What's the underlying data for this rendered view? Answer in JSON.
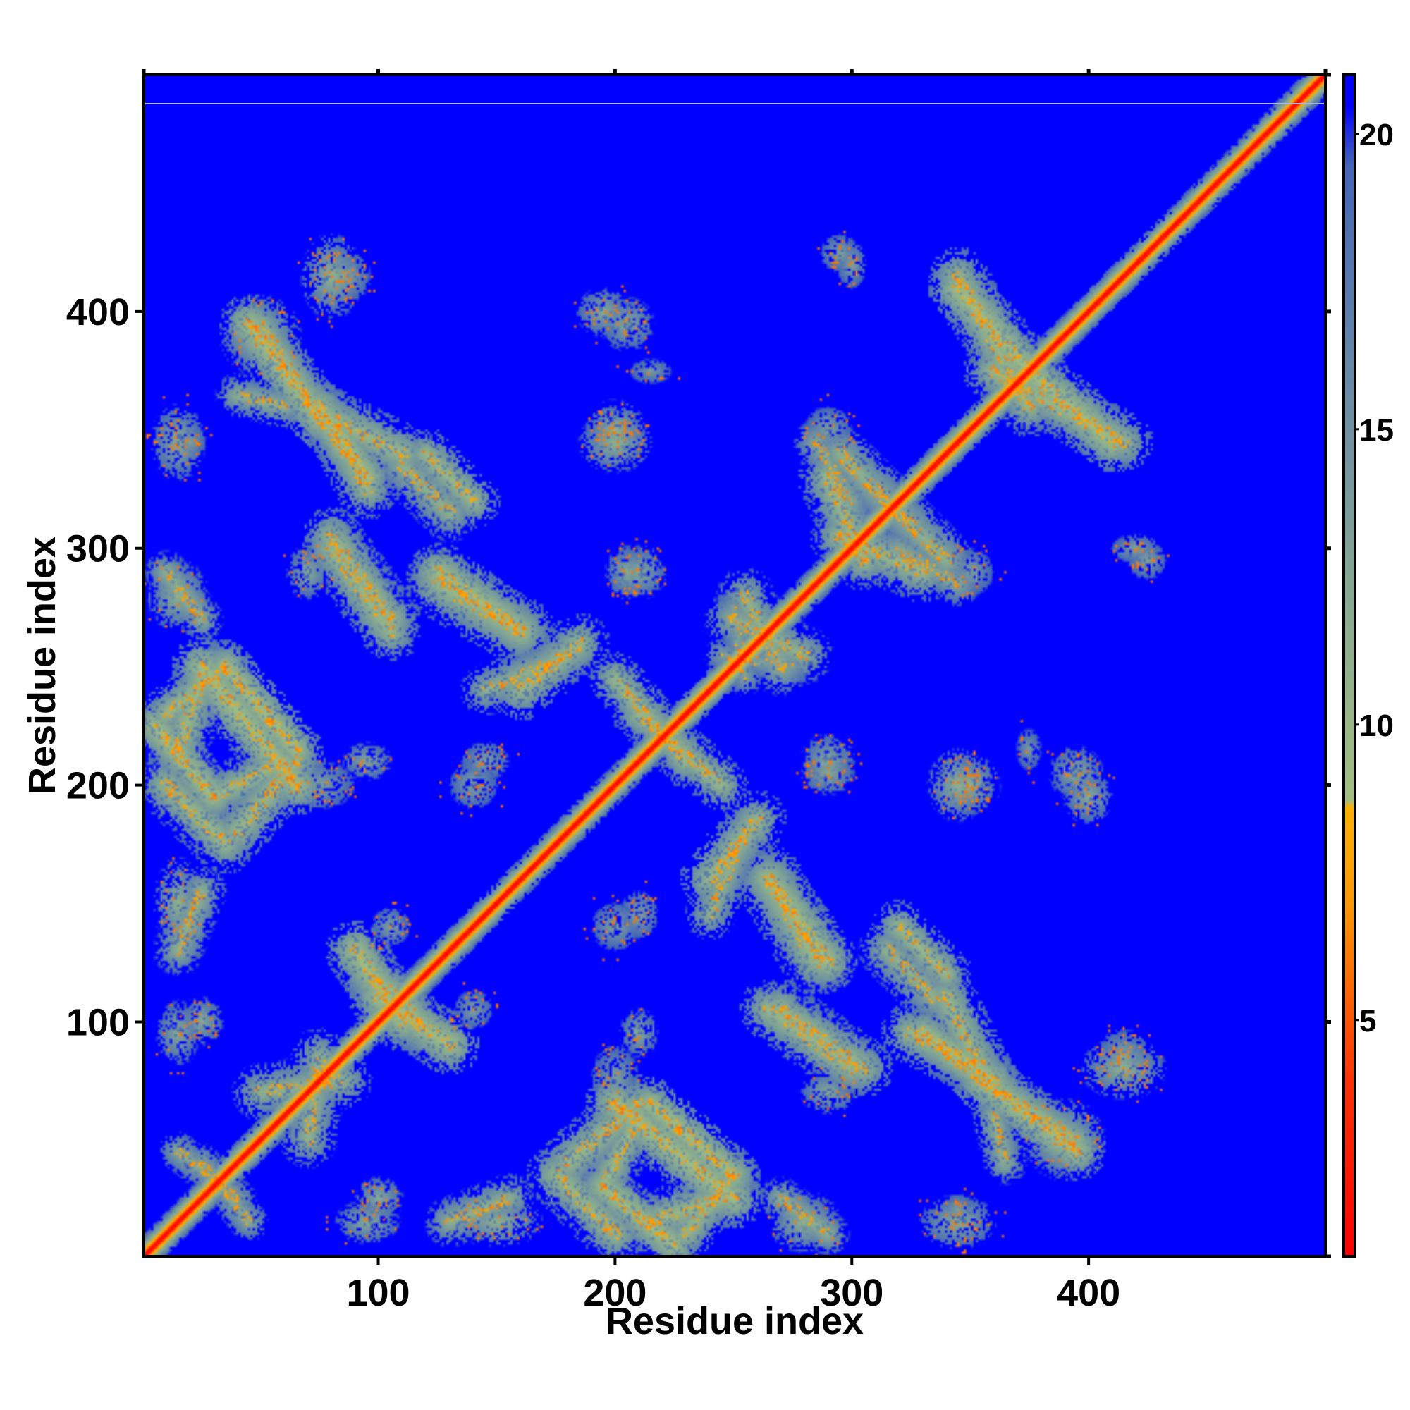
{
  "chart_data": {
    "type": "heatmap",
    "title": "",
    "xlabel": "Residue index",
    "ylabel": "Residue index",
    "xlim": [
      1,
      500
    ],
    "ylim": [
      1,
      500
    ],
    "x_ticks": [
      100,
      200,
      300,
      400
    ],
    "y_ticks": [
      100,
      200,
      300,
      400
    ],
    "colorbar": {
      "range": [
        1,
        21
      ],
      "ticks": [
        5,
        10,
        15,
        20
      ],
      "stops": [
        {
          "value": 1,
          "color": "#ff0000"
        },
        {
          "value": 4,
          "color": "#ff3300"
        },
        {
          "value": 7,
          "color": "#ff9900"
        },
        {
          "value": 8.6,
          "color": "#ffb000"
        },
        {
          "value": 8.7,
          "color": "#a4bf80"
        },
        {
          "value": 12,
          "color": "#88aa90"
        },
        {
          "value": 16,
          "color": "#6688a8"
        },
        {
          "value": 19.5,
          "color": "#4466b8"
        },
        {
          "value": 20.5,
          "color": "#0000ff"
        }
      ]
    },
    "background_value": 21,
    "diagonal": {
      "core_value": 1.5,
      "half_width": 3
    },
    "contact_features": [
      {
        "kind": "blob",
        "x": 85,
        "y": 415,
        "rx": 10,
        "ry": 10,
        "value": 12
      },
      {
        "kind": "blob",
        "x": 50,
        "y": 390,
        "rx": 12,
        "ry": 12,
        "value": 10
      },
      {
        "kind": "blob",
        "x": 205,
        "y": 395,
        "rx": 10,
        "ry": 10,
        "value": 12
      },
      {
        "kind": "blob",
        "x": 295,
        "y": 425,
        "rx": 8,
        "ry": 8,
        "value": 13
      },
      {
        "kind": "blob",
        "x": 20,
        "y": 345,
        "rx": 7,
        "ry": 7,
        "value": 13
      },
      {
        "kind": "blob",
        "x": 200,
        "y": 350,
        "rx": 10,
        "ry": 10,
        "value": 11
      },
      {
        "kind": "blob",
        "x": 205,
        "y": 290,
        "rx": 8,
        "ry": 10,
        "value": 12
      },
      {
        "kind": "blob",
        "x": 420,
        "y": 300,
        "rx": 10,
        "ry": 6,
        "value": 13
      },
      {
        "kind": "blob",
        "x": 25,
        "y": 100,
        "rx": 8,
        "ry": 9,
        "value": 12
      },
      {
        "kind": "blob",
        "x": 95,
        "y": 210,
        "rx": 9,
        "ry": 7,
        "value": 12
      },
      {
        "kind": "blob",
        "x": 145,
        "y": 210,
        "rx": 10,
        "ry": 8,
        "value": 13
      },
      {
        "kind": "blob",
        "x": 290,
        "y": 210,
        "rx": 10,
        "ry": 10,
        "value": 12
      },
      {
        "kind": "blob",
        "x": 345,
        "y": 200,
        "rx": 10,
        "ry": 12,
        "value": 11
      },
      {
        "kind": "blob",
        "x": 400,
        "y": 195,
        "rx": 9,
        "ry": 10,
        "value": 12
      },
      {
        "kind": "blob",
        "x": 375,
        "y": 215,
        "rx": 6,
        "ry": 10,
        "value": 14
      },
      {
        "kind": "blob",
        "x": 350,
        "y": 290,
        "rx": 10,
        "ry": 10,
        "value": 13
      },
      {
        "kind": "blob",
        "x": 415,
        "y": 80,
        "rx": 14,
        "ry": 10,
        "value": 11
      },
      {
        "kind": "blob",
        "x": 95,
        "y": 15,
        "rx": 12,
        "ry": 8,
        "value": 12
      },
      {
        "kind": "blob",
        "x": 345,
        "y": 15,
        "rx": 14,
        "ry": 10,
        "value": 12
      },
      {
        "kind": "blob",
        "x": 280,
        "y": 15,
        "rx": 12,
        "ry": 10,
        "value": 11
      },
      {
        "kind": "blob",
        "x": 200,
        "y": 75,
        "rx": 10,
        "ry": 15,
        "value": 13
      },
      {
        "kind": "blob",
        "x": 290,
        "y": 70,
        "rx": 10,
        "ry": 8,
        "value": 12
      },
      {
        "kind": "blob",
        "x": 200,
        "y": 140,
        "rx": 10,
        "ry": 10,
        "value": 13
      },
      {
        "kind": "blob",
        "x": 140,
        "y": 105,
        "rx": 8,
        "ry": 8,
        "value": 13
      },
      {
        "kind": "blob",
        "x": 15,
        "y": 150,
        "rx": 8,
        "ry": 15,
        "value": 11
      },
      {
        "kind": "band",
        "x1": 50,
        "y1": 395,
        "x2": 85,
        "y2": 340,
        "width": 6,
        "value": 10
      },
      {
        "kind": "band",
        "x1": 75,
        "y1": 360,
        "x2": 95,
        "y2": 330,
        "width": 7,
        "value": 9
      },
      {
        "kind": "band",
        "x1": 120,
        "y1": 340,
        "x2": 140,
        "y2": 320,
        "width": 7,
        "value": 10
      },
      {
        "kind": "band",
        "x1": 60,
        "y1": 360,
        "x2": 40,
        "y2": 365,
        "width": 6,
        "value": 11
      },
      {
        "kind": "band",
        "x1": 80,
        "y1": 305,
        "x2": 105,
        "y2": 270,
        "width": 8,
        "value": 10
      },
      {
        "kind": "band",
        "x1": 125,
        "y1": 285,
        "x2": 160,
        "y2": 265,
        "width": 9,
        "value": 10
      },
      {
        "kind": "band",
        "x1": 145,
        "y1": 240,
        "x2": 180,
        "y2": 255,
        "width": 7,
        "value": 11
      },
      {
        "kind": "band",
        "x1": 10,
        "y1": 290,
        "x2": 25,
        "y2": 270,
        "width": 6,
        "value": 11
      },
      {
        "kind": "band",
        "x1": 5,
        "y1": 225,
        "x2": 30,
        "y2": 195,
        "width": 7,
        "value": 9
      },
      {
        "kind": "band",
        "x1": 30,
        "y1": 195,
        "x2": 60,
        "y2": 210,
        "width": 7,
        "value": 10
      },
      {
        "kind": "band",
        "x1": 10,
        "y1": 230,
        "x2": 35,
        "y2": 250,
        "width": 7,
        "value": 10
      },
      {
        "kind": "band",
        "x1": 35,
        "y1": 250,
        "x2": 65,
        "y2": 215,
        "width": 7,
        "value": 9
      },
      {
        "kind": "band",
        "x1": 200,
        "y1": 245,
        "x2": 230,
        "y2": 210,
        "width": 7,
        "value": 10
      },
      {
        "kind": "band",
        "x1": 250,
        "y1": 270,
        "x2": 280,
        "y2": 255,
        "width": 8,
        "value": 11
      },
      {
        "kind": "band",
        "x1": 345,
        "y1": 410,
        "x2": 375,
        "y2": 375,
        "width": 8,
        "value": 9
      },
      {
        "kind": "band",
        "x1": 360,
        "y1": 375,
        "x2": 415,
        "y2": 345,
        "width": 8,
        "value": 10
      },
      {
        "kind": "band",
        "x1": 290,
        "y1": 330,
        "x2": 305,
        "y2": 295,
        "width": 8,
        "value": 10
      },
      {
        "kind": "band",
        "x1": 310,
        "y1": 325,
        "x2": 340,
        "y2": 295,
        "width": 8,
        "value": 11
      },
      {
        "kind": "band",
        "x1": 285,
        "y1": 345,
        "x2": 300,
        "y2": 320,
        "width": 7,
        "value": 12
      },
      {
        "kind": "band",
        "x1": 90,
        "y1": 130,
        "x2": 110,
        "y2": 100,
        "width": 8,
        "value": 9
      },
      {
        "kind": "band",
        "x1": 110,
        "y1": 110,
        "x2": 120,
        "y2": 95,
        "width": 7,
        "value": 10
      },
      {
        "kind": "band",
        "x1": 50,
        "y1": 70,
        "x2": 85,
        "y2": 75,
        "width": 8,
        "value": 11
      },
      {
        "kind": "band",
        "x1": 15,
        "y1": 45,
        "x2": 40,
        "y2": 25,
        "width": 6,
        "value": 12
      },
      {
        "kind": "band",
        "x1": 240,
        "y1": 160,
        "x2": 260,
        "y2": 185,
        "width": 8,
        "value": 10
      },
      {
        "kind": "band",
        "x1": 265,
        "y1": 160,
        "x2": 290,
        "y2": 125,
        "width": 8,
        "value": 9
      },
      {
        "kind": "band",
        "x1": 265,
        "y1": 105,
        "x2": 300,
        "y2": 80,
        "width": 8,
        "value": 10
      },
      {
        "kind": "band",
        "x1": 315,
        "y1": 130,
        "x2": 335,
        "y2": 110,
        "width": 8,
        "value": 11
      },
      {
        "kind": "band",
        "x1": 325,
        "y1": 95,
        "x2": 355,
        "y2": 80,
        "width": 8,
        "value": 10
      },
      {
        "kind": "band",
        "x1": 355,
        "y1": 75,
        "x2": 395,
        "y2": 45,
        "width": 8,
        "value": 9
      },
      {
        "kind": "band",
        "x1": 340,
        "y1": 110,
        "x2": 355,
        "y2": 80,
        "width": 8,
        "value": 10
      },
      {
        "kind": "band",
        "x1": 175,
        "y1": 35,
        "x2": 200,
        "y2": 10,
        "width": 8,
        "value": 10
      },
      {
        "kind": "band",
        "x1": 200,
        "y1": 65,
        "x2": 250,
        "y2": 25,
        "width": 8,
        "value": 9
      },
      {
        "kind": "band",
        "x1": 180,
        "y1": 40,
        "x2": 210,
        "y2": 65,
        "width": 8,
        "value": 10
      },
      {
        "kind": "band",
        "x1": 215,
        "y1": 15,
        "x2": 245,
        "y2": 25,
        "width": 8,
        "value": 10
      },
      {
        "kind": "band",
        "x1": 130,
        "y1": 15,
        "x2": 155,
        "y2": 25,
        "width": 7,
        "value": 11
      },
      {
        "kind": "band",
        "x1": 255,
        "y1": 245,
        "x2": 250,
        "y2": 275,
        "width": 6,
        "value": 13
      }
    ]
  }
}
